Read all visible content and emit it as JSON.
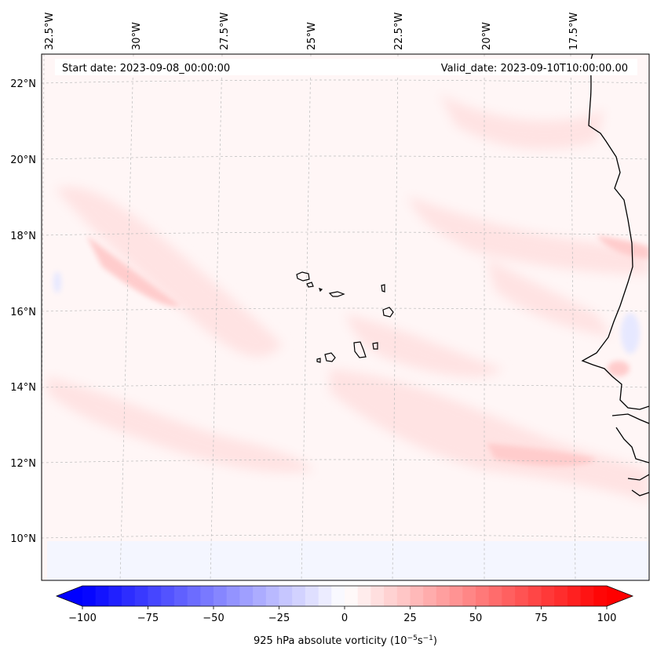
{
  "map": {
    "start_date": "Start date: 2023-09-08_00:00:00",
    "valid_date": "Valid_date: 2023-09-10T10:00:00.00",
    "variable": "925 hPa absolute vorticity",
    "units_base": "(10",
    "units_exp1": "−5",
    "units_mid": "s",
    "units_exp2": "−1",
    "units_close": ")",
    "lon_labels": [
      "32.5°W",
      "30°W",
      "27.5°W",
      "25°W",
      "22.5°W",
      "20°W",
      "17.5°W"
    ],
    "lat_labels": [
      "22°N",
      "20°N",
      "18°N",
      "16°N",
      "14°N",
      "12°N",
      "10°N"
    ],
    "region": "Eastern tropical Atlantic with Cape Verde Islands and West African coast",
    "colormap": "bwr"
  },
  "colorbar": {
    "ticks": [
      -100,
      -75,
      -50,
      -25,
      0,
      25,
      50,
      75,
      100
    ],
    "tick_labels": [
      "−100",
      "−75",
      "−50",
      "−25",
      "0",
      "25",
      "50",
      "75",
      "100"
    ],
    "vmin": -100,
    "vmax": 100,
    "step": 5,
    "extend": "both",
    "low_color": "#0000ff",
    "mid_color": "#ffffff",
    "high_color": "#ff0000"
  }
}
